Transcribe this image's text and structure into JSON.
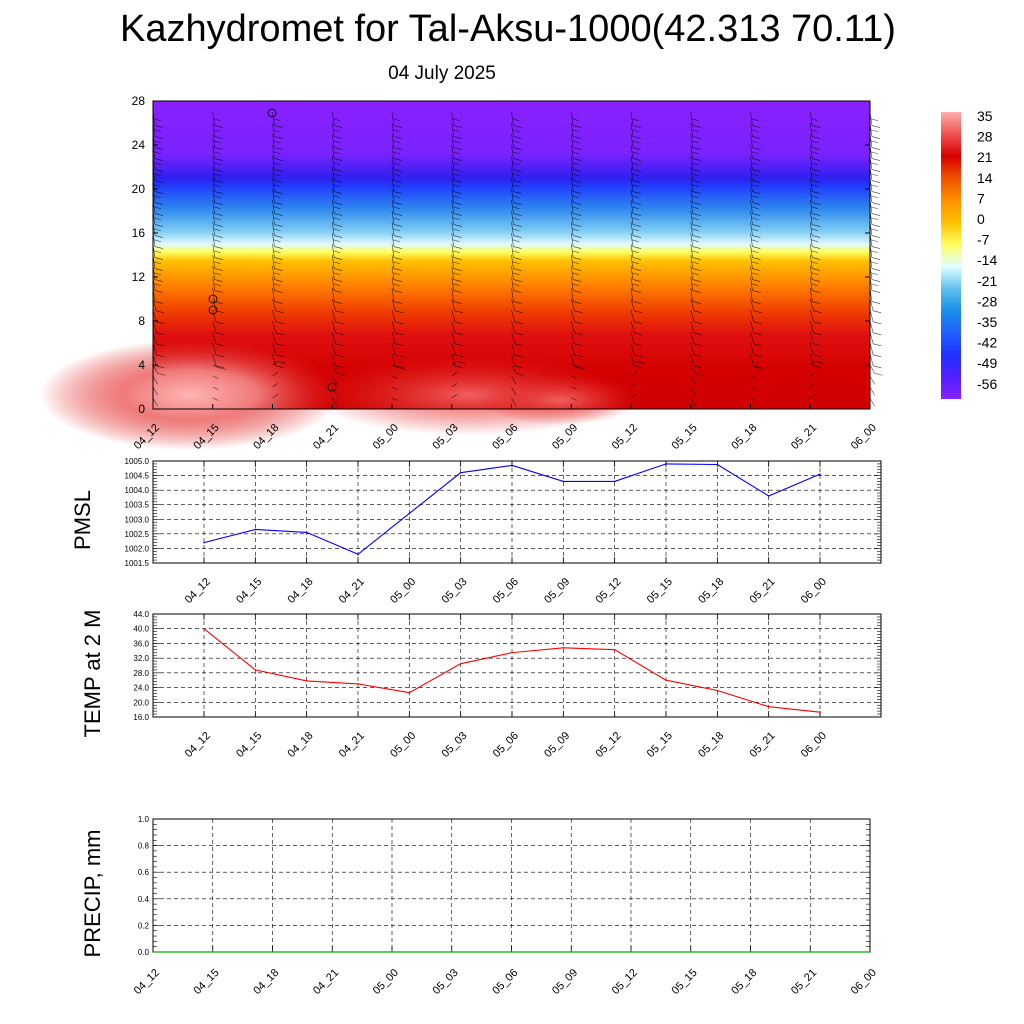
{
  "title": "Kazhydromet for Tal-Aksu-1000(42.313 70.11)",
  "subtitle": "04 July 2025",
  "time_labels": [
    "04_12",
    "04_15",
    "04_18",
    "04_21",
    "05_00",
    "05_03",
    "05_06",
    "05_09",
    "05_12",
    "05_15",
    "05_18",
    "05_21",
    "06_00"
  ],
  "colorbar_labels": [
    "35",
    "28",
    "21",
    "14",
    "7",
    "0",
    "-7",
    "-14",
    "-21",
    "-28",
    "-35",
    "-42",
    "-49",
    "-56"
  ],
  "colors": {
    "pmsl_line": "#0000ff",
    "temp_line": "#ff0000",
    "precip_line": "#00aa00",
    "colorbar": [
      "#ffb0b0",
      "#f05050",
      "#d80000",
      "#f05000",
      "#ff9000",
      "#ffc000",
      "#ffff60",
      "#e0ffff",
      "#60c0f0",
      "#1890e8",
      "#2060ff",
      "#2030ff",
      "#5020ff",
      "#8a20ff"
    ]
  },
  "chart_data": [
    {
      "type": "heatmap",
      "name": "upper-air time-height section",
      "x_ticks": [
        "04_12",
        "04_15",
        "04_18",
        "04_21",
        "05_00",
        "05_03",
        "05_06",
        "05_09",
        "05_12",
        "05_15",
        "05_18",
        "05_21",
        "06_00"
      ],
      "y_ticks": [
        "0",
        "4",
        "8",
        "12",
        "16",
        "20",
        "24",
        "28"
      ],
      "ylim": [
        0,
        28
      ],
      "colorbar_range": [
        -56,
        35
      ],
      "overlay": "wind barbs"
    },
    {
      "type": "line",
      "ylabel": "PMSL",
      "x": [
        "04_12",
        "04_15",
        "04_18",
        "04_21",
        "05_00",
        "05_03",
        "05_06",
        "05_09",
        "05_12",
        "05_15",
        "05_18",
        "05_21",
        "06_00"
      ],
      "values": [
        1002.2,
        1002.65,
        1002.55,
        1001.8,
        1003.2,
        1004.6,
        1004.85,
        1004.3,
        1004.3,
        1004.9,
        1004.88,
        1003.8,
        1004.55
      ],
      "ylim": [
        1001.5,
        1005.0
      ],
      "y_ticks": [
        "1001.5",
        "1002.0",
        "1002.5",
        "1003.0",
        "1003.5",
        "1004.0",
        "1004.5",
        "1005.0"
      ],
      "grid": true
    },
    {
      "type": "line",
      "ylabel": "TEMP at 2 M",
      "x": [
        "04_12",
        "04_15",
        "04_18",
        "04_21",
        "05_00",
        "05_03",
        "05_06",
        "05_09",
        "05_12",
        "05_15",
        "05_18",
        "05_21",
        "06_00"
      ],
      "values": [
        40.0,
        28.8,
        25.8,
        25.0,
        22.6,
        30.5,
        33.5,
        34.8,
        34.3,
        26.0,
        23.2,
        18.8,
        17.3
      ],
      "ylim": [
        16.0,
        44.0
      ],
      "y_ticks": [
        "16.0",
        "20.0",
        "24.0",
        "28.0",
        "32.0",
        "36.0",
        "40.0",
        "44.0"
      ],
      "grid": true
    },
    {
      "type": "line",
      "ylabel": "PRECIP, mm",
      "x": [
        "04_12",
        "04_15",
        "04_18",
        "04_21",
        "05_00",
        "05_03",
        "05_06",
        "05_09",
        "05_12",
        "05_15",
        "05_18",
        "05_21",
        "06_00"
      ],
      "values": [
        0,
        0,
        0,
        0,
        0,
        0,
        0,
        0,
        0,
        0,
        0,
        0,
        0
      ],
      "ylim": [
        0.0,
        1.0
      ],
      "y_ticks": [
        "0.0",
        "0.2",
        "0.4",
        "0.6",
        "0.8",
        "1.0"
      ],
      "grid": true
    }
  ]
}
